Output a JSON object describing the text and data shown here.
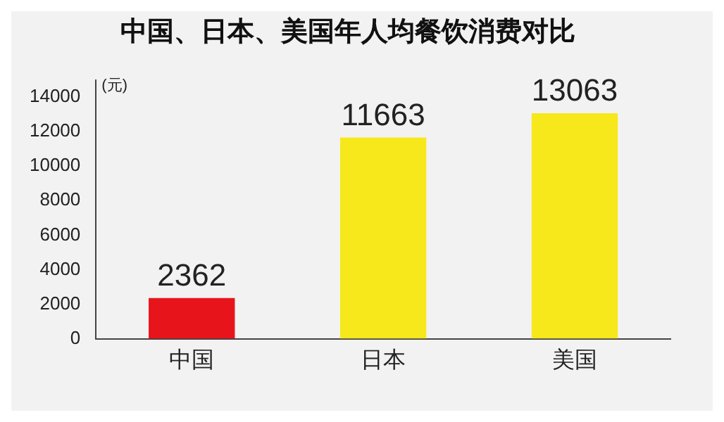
{
  "chart_data": {
    "type": "bar",
    "title": "中国、日本、美国年人均餐饮消费对比",
    "ylabel": "(元)",
    "categories": [
      "中国",
      "日本",
      "美国"
    ],
    "values": [
      2362,
      11663,
      13063
    ],
    "colors": [
      "#e8141b",
      "#f7e81c",
      "#f7e81c"
    ],
    "ylim": [
      0,
      15000
    ],
    "yticks": [
      0,
      2000,
      4000,
      6000,
      8000,
      10000,
      12000,
      14000
    ],
    "grid": false,
    "data_labels": true,
    "legend": false
  }
}
